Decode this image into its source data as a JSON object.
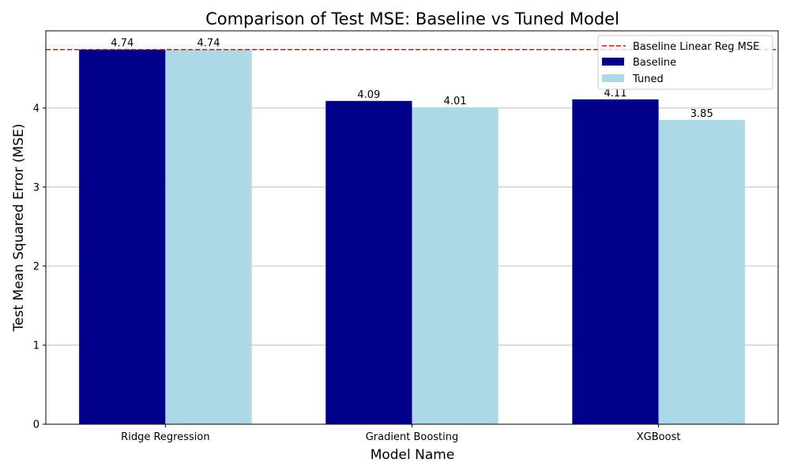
{
  "chart_data": {
    "type": "bar",
    "title": "Comparison of Test MSE: Baseline vs Tuned Model",
    "xlabel": "Model Name",
    "ylabel": "Test Mean Squared Error (MSE)",
    "categories": [
      "Ridge Regression",
      "Gradient Boosting",
      "XGBoost"
    ],
    "series": [
      {
        "name": "Baseline",
        "values": [
          4.74,
          4.09,
          4.11
        ],
        "color": "#00008b"
      },
      {
        "name": "Tuned",
        "values": [
          4.74,
          4.01,
          3.85
        ],
        "color": "#add8e6"
      }
    ],
    "reference_line": {
      "name": "Baseline Linear Reg MSE",
      "value": 4.74,
      "color": "#ff0000",
      "style": "dashed"
    },
    "ylim": [
      0,
      4.977
    ],
    "yticks": [
      0,
      1,
      2,
      3,
      4
    ],
    "grid": "y",
    "legend_position": "top-right",
    "data_label_format": "2-decimal"
  }
}
